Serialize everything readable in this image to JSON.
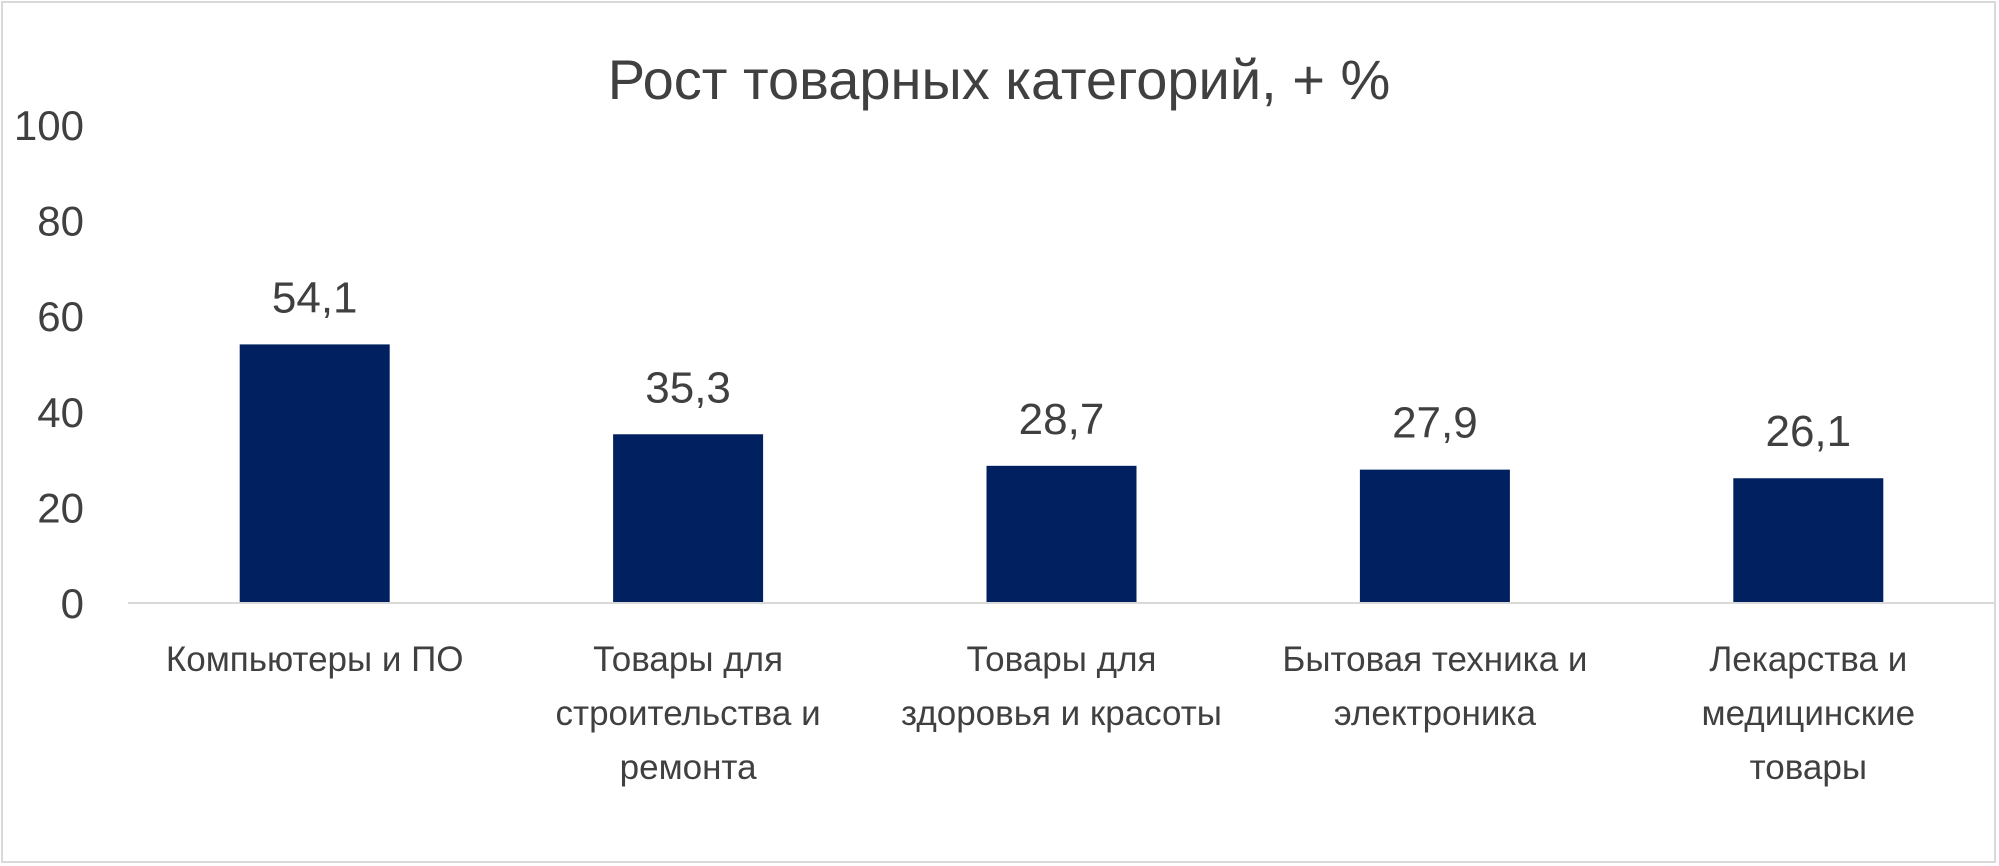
{
  "chart_data": {
    "type": "bar",
    "title": "Рост товарных категорий, + %",
    "categories": [
      "Компьютеры и ПО",
      "Товары для строительства и ремонта",
      "Товары для здоровья и красоты",
      "Бытовая техника и электроника",
      "Лекарства и медицинские товары"
    ],
    "category_lines": [
      [
        "Компьютеры и ПО"
      ],
      [
        "Товары для",
        "строительства и",
        "ремонта"
      ],
      [
        "Товары для",
        "здоровья и красоты"
      ],
      [
        "Бытовая техника и",
        "электроника"
      ],
      [
        "Лекарства и",
        "медицинские",
        "товары"
      ]
    ],
    "values": [
      54.1,
      35.3,
      28.7,
      27.9,
      26.1
    ],
    "data_labels": [
      "54,1",
      "35,3",
      "28,7",
      "27,9",
      "26,1"
    ],
    "ylim": [
      0,
      100
    ],
    "yticks": [
      0,
      20,
      40,
      60,
      80,
      100
    ],
    "xlabel": "",
    "ylabel": "",
    "grid": false,
    "legend": "none",
    "bar_color": "#002060",
    "axis_color": "#d9d9d9",
    "text_color": "#404040"
  }
}
